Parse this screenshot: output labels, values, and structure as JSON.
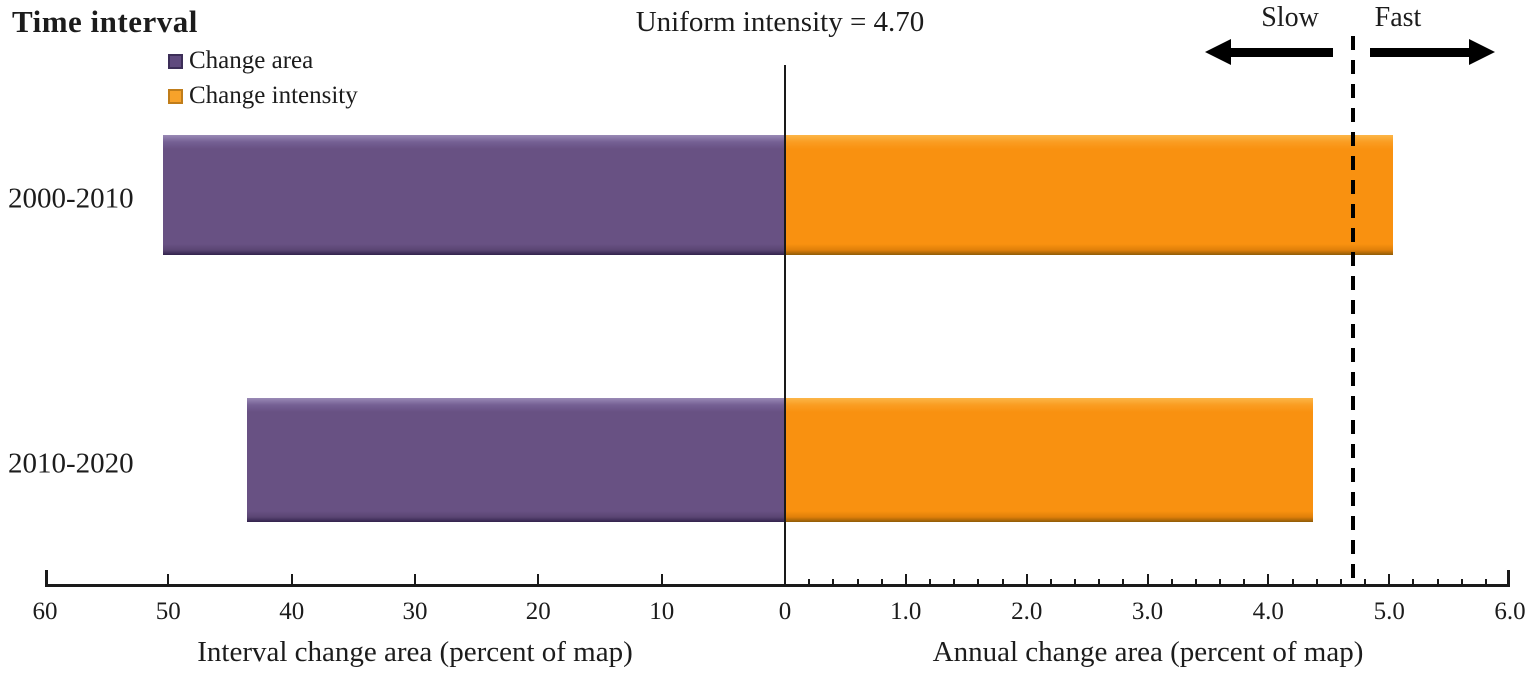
{
  "title": "Time interval",
  "legend": {
    "items": [
      {
        "label": "Change area",
        "color": "#685183"
      },
      {
        "label": "Change intensity",
        "color": "#f99110"
      }
    ]
  },
  "annotations": {
    "uniform_intensity_label": "Uniform intensity = 4.70",
    "uniform_intensity_value": 4.7,
    "slow_label": "Slow",
    "fast_label": "Fast"
  },
  "chart_data": {
    "type": "bar",
    "orientation": "horizontal-diverging",
    "categories": [
      "2000-2010",
      "2010-2020"
    ],
    "series": [
      {
        "name": "Change area",
        "axis": "left",
        "values": [
          50.4,
          43.6
        ],
        "color": "#685183"
      },
      {
        "name": "Change intensity",
        "axis": "right",
        "values": [
          5.03,
          4.37
        ],
        "color": "#f99110"
      }
    ],
    "left_axis": {
      "label": "Interval change area (percent of map)",
      "range": [
        0,
        60
      ],
      "direction": "right-to-left",
      "major_ticks": [
        60,
        50,
        40,
        30,
        20,
        10
      ],
      "tick_labels": [
        "60",
        "50",
        "40",
        "30",
        "20",
        "10"
      ]
    },
    "center_tick_label": "0",
    "right_axis": {
      "label": "Annual change area (percent of map)",
      "range": [
        0,
        6
      ],
      "major_ticks": [
        1,
        2,
        3,
        4,
        5,
        6
      ],
      "tick_labels": [
        "1.0",
        "2.0",
        "3.0",
        "4.0",
        "5.0",
        "6.0"
      ],
      "minor_tick_step": 0.2
    },
    "reference_line": {
      "value": 4.7,
      "style": "dashed",
      "label": "Uniform intensity = 4.70"
    },
    "legend_position": "top-left",
    "grid": false
  }
}
